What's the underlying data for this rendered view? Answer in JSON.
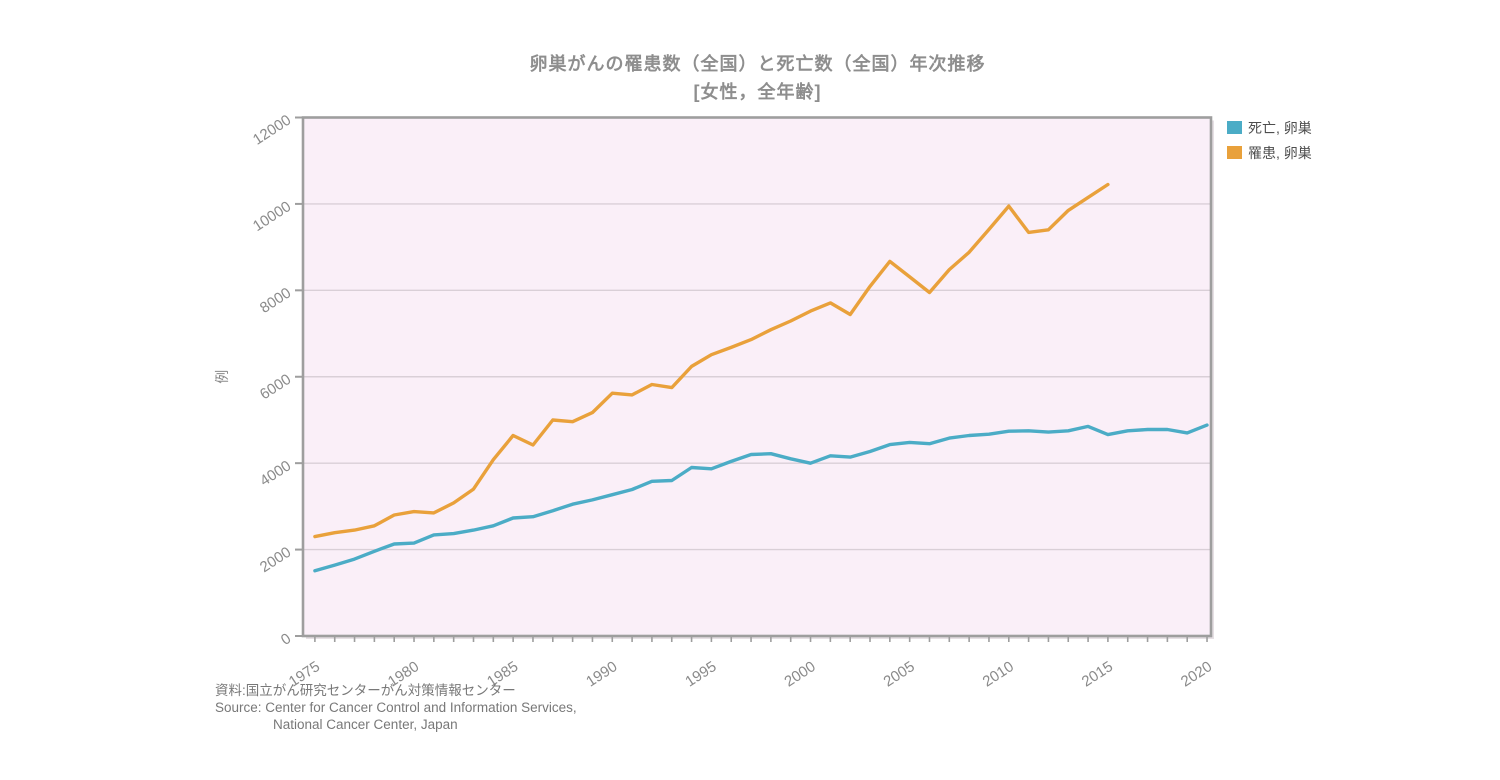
{
  "title": {
    "line1": "卵巣がんの罹患数（全国）と死亡数（全国）年次推移",
    "line2": "[女性，全年齢]"
  },
  "source": {
    "line1": "資料:国立がん研究センターがん対策情報センター",
    "line2": "Source: Center for Cancer Control and Information Services,",
    "line3": "National Cancer Center, Japan"
  },
  "chart_data": {
    "type": "line",
    "title": "卵巣がんの罹患数（全国）と死亡数（全国）年次推移 [女性，全年齢]",
    "xlabel": "",
    "ylabel": "例",
    "xlim": [
      1974.4,
      2020.2
    ],
    "ylim": [
      0,
      12000
    ],
    "grid": true,
    "legend_position": "top-right-outside",
    "xticks": [
      1975,
      1980,
      1985,
      1990,
      1995,
      2000,
      2005,
      2010,
      2015,
      2020
    ],
    "yticks": [
      0,
      2000,
      4000,
      6000,
      8000,
      10000,
      12000
    ],
    "colors": {
      "plot_background": "#FAEFF8",
      "gridline": "#D9CFD7",
      "frame": "#9E9E9E",
      "tick_label": "#8A8A8A",
      "legend_text": "#4D4D4D",
      "title_text": "#8E8E8E"
    },
    "series": [
      {
        "name": "死亡, 卵巣",
        "color": "#4BACC6",
        "x_start": 1975,
        "values": [
          1510,
          1640,
          1780,
          1960,
          2130,
          2150,
          2340,
          2370,
          2450,
          2550,
          2730,
          2760,
          2900,
          3050,
          3150,
          3270,
          3390,
          3580,
          3600,
          3900,
          3870,
          4040,
          4200,
          4220,
          4100,
          4000,
          4170,
          4140,
          4270,
          4430,
          4480,
          4450,
          4580,
          4640,
          4670,
          4740,
          4750,
          4720,
          4750,
          4850,
          4660,
          4750,
          4780,
          4780,
          4700,
          4880
        ]
      },
      {
        "name": "罹患, 卵巣",
        "color": "#E9A13B",
        "x_start": 1975,
        "values": [
          2300,
          2390,
          2450,
          2550,
          2800,
          2880,
          2850,
          3080,
          3400,
          4080,
          4640,
          4420,
          5000,
          4960,
          5170,
          5620,
          5580,
          5820,
          5750,
          6240,
          6510,
          6680,
          6860,
          7090,
          7290,
          7520,
          7710,
          7440,
          8090,
          8670,
          8310,
          7950,
          8480,
          8880,
          9410,
          9950,
          9340,
          9400,
          9850,
          10150,
          10450
        ]
      }
    ]
  }
}
